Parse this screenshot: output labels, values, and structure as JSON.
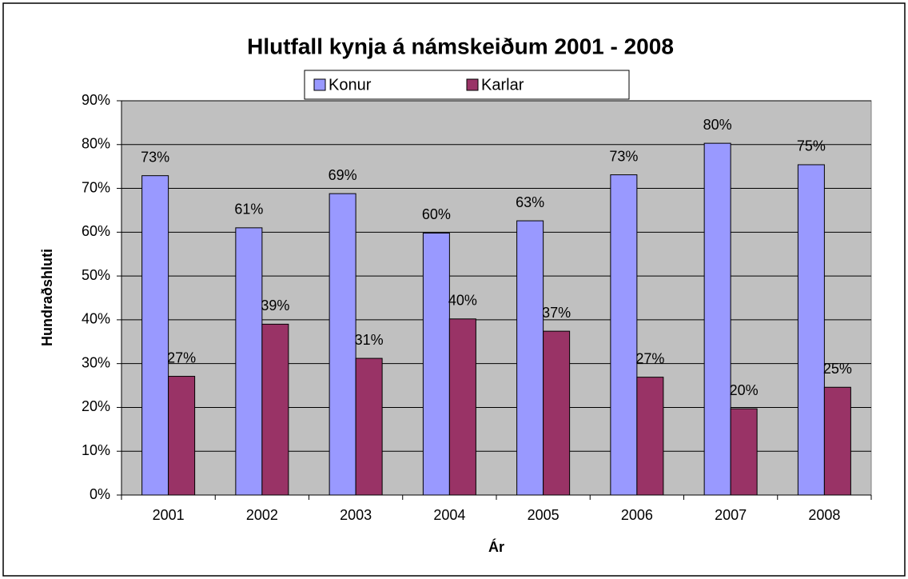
{
  "chart_data": {
    "type": "bar",
    "title": "Hlutfall kynja á námskeiðum 2001 - 2008",
    "x_label": "Ár",
    "y_label": "Hundraðshluti",
    "categories": [
      "2001",
      "2002",
      "2003",
      "2004",
      "2005",
      "2006",
      "2007",
      "2008"
    ],
    "series": [
      {
        "name": "Konur",
        "color": "#9999ff",
        "values": [
          72.9,
          61,
          68.8,
          59.8,
          62.6,
          73.1,
          80.3,
          75.4
        ],
        "value_labels": [
          "73%",
          "61%",
          "69%",
          "60%",
          "63%",
          "73%",
          "80%",
          "75%"
        ]
      },
      {
        "name": "Karlar",
        "color": "#993366",
        "values": [
          27.1,
          39,
          31.2,
          40.2,
          37.4,
          26.9,
          19.7,
          24.6
        ],
        "value_labels": [
          "27%",
          "39%",
          "31%",
          "40%",
          "37%",
          "27%",
          "20%",
          "25%"
        ]
      }
    ],
    "ylim": [
      0,
      90
    ],
    "yticks": [
      {
        "value": 0,
        "label": "0%"
      },
      {
        "value": 10,
        "label": "10%"
      },
      {
        "value": 20,
        "label": "20%"
      },
      {
        "value": 30,
        "label": "30%"
      },
      {
        "value": 40,
        "label": "40%"
      },
      {
        "value": 50,
        "label": "50%"
      },
      {
        "value": 60,
        "label": "60%"
      },
      {
        "value": 70,
        "label": "70%"
      },
      {
        "value": 80,
        "label": "80%"
      },
      {
        "value": 90,
        "label": "90%"
      }
    ],
    "grid": true,
    "legend": "top",
    "plot_background": "#c0c0c0"
  }
}
